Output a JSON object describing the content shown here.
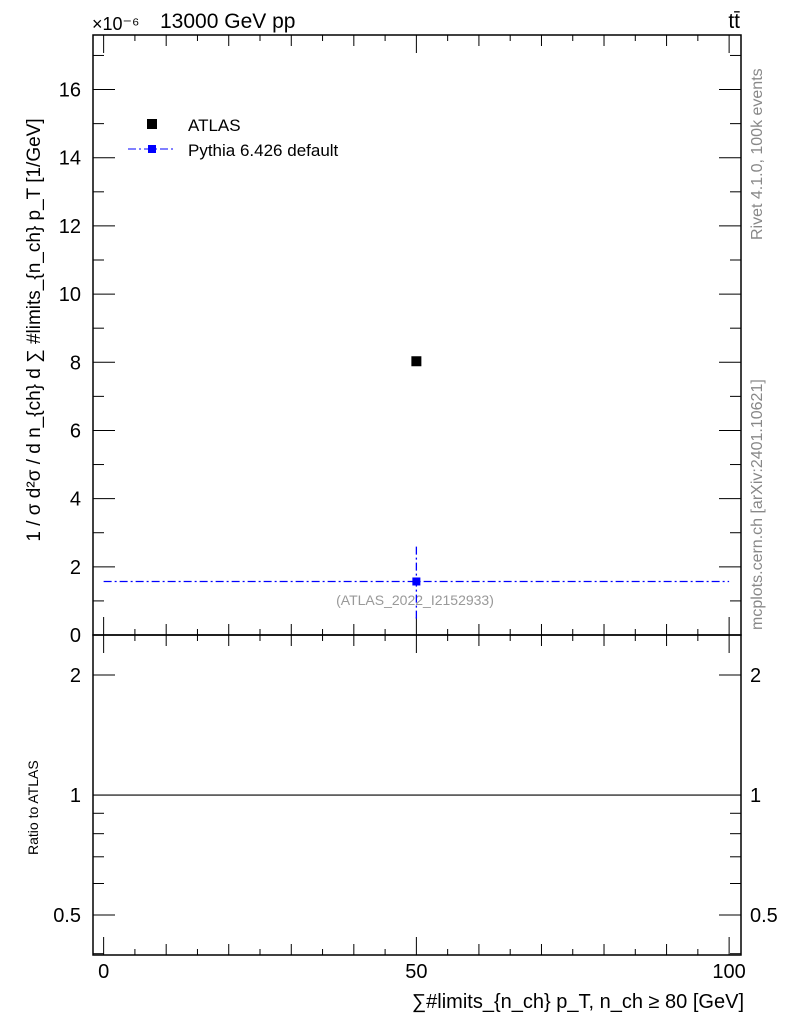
{
  "chart_data": [
    {
      "type": "scatter",
      "panel": "main",
      "title_left": "13000 GeV pp",
      "title_right": "tt̄",
      "exponent_label": "×10⁻⁶",
      "ylabel": "1 / σ d²σ / d n_{ch} d ∑ #limits_{n_ch} p_T [1/GeV]",
      "ylim": [
        0,
        17.6
      ],
      "xlim": [
        -1.7,
        101.9
      ],
      "yticks": [
        0,
        2,
        4,
        6,
        8,
        10,
        12,
        14,
        16
      ],
      "ytick_labels": [
        "0",
        "2",
        "4",
        "6",
        "8",
        "10",
        "12",
        "14",
        "16"
      ],
      "legend_position": "top-left",
      "annotation": "(ATLAS_2022_I2152933)",
      "series": [
        {
          "name": "ATLAS",
          "color": "#000000",
          "x": [
            50
          ],
          "y": [
            8.03
          ],
          "xerr": [
            0
          ],
          "yerr_low": [
            0
          ],
          "yerr_high": [
            0
          ]
        },
        {
          "name": "Pythia 6.426 default",
          "color": "#0000ff",
          "x": [
            50
          ],
          "y": [
            1.57
          ],
          "xlow": [
            0
          ],
          "xhigh": [
            100
          ],
          "ylow": [
            0.48
          ],
          "yhigh": [
            2.68
          ]
        }
      ]
    },
    {
      "type": "line",
      "panel": "ratio",
      "ylabel": "Ratio to ATLAS",
      "yscale": "log",
      "ylim": [
        0.397,
        2.52
      ],
      "xlim": [
        -1.7,
        101.9
      ],
      "yticks": [
        0.5,
        1,
        2
      ],
      "ytick_labels": [
        "0.5",
        "1",
        "2"
      ],
      "xticks": [
        0,
        50,
        100
      ],
      "xtick_labels": [
        "0",
        "50",
        "100"
      ],
      "xlabel": "∑#limits_{n_ch} p_T, n_ch ≥ 80 [GeV]",
      "reference_line": 1
    }
  ],
  "side_labels": {
    "rivet": "Rivet 4.1.0,  100k events",
    "mcplots": "mcplots.cern.ch [arXiv:2401.10621]"
  }
}
